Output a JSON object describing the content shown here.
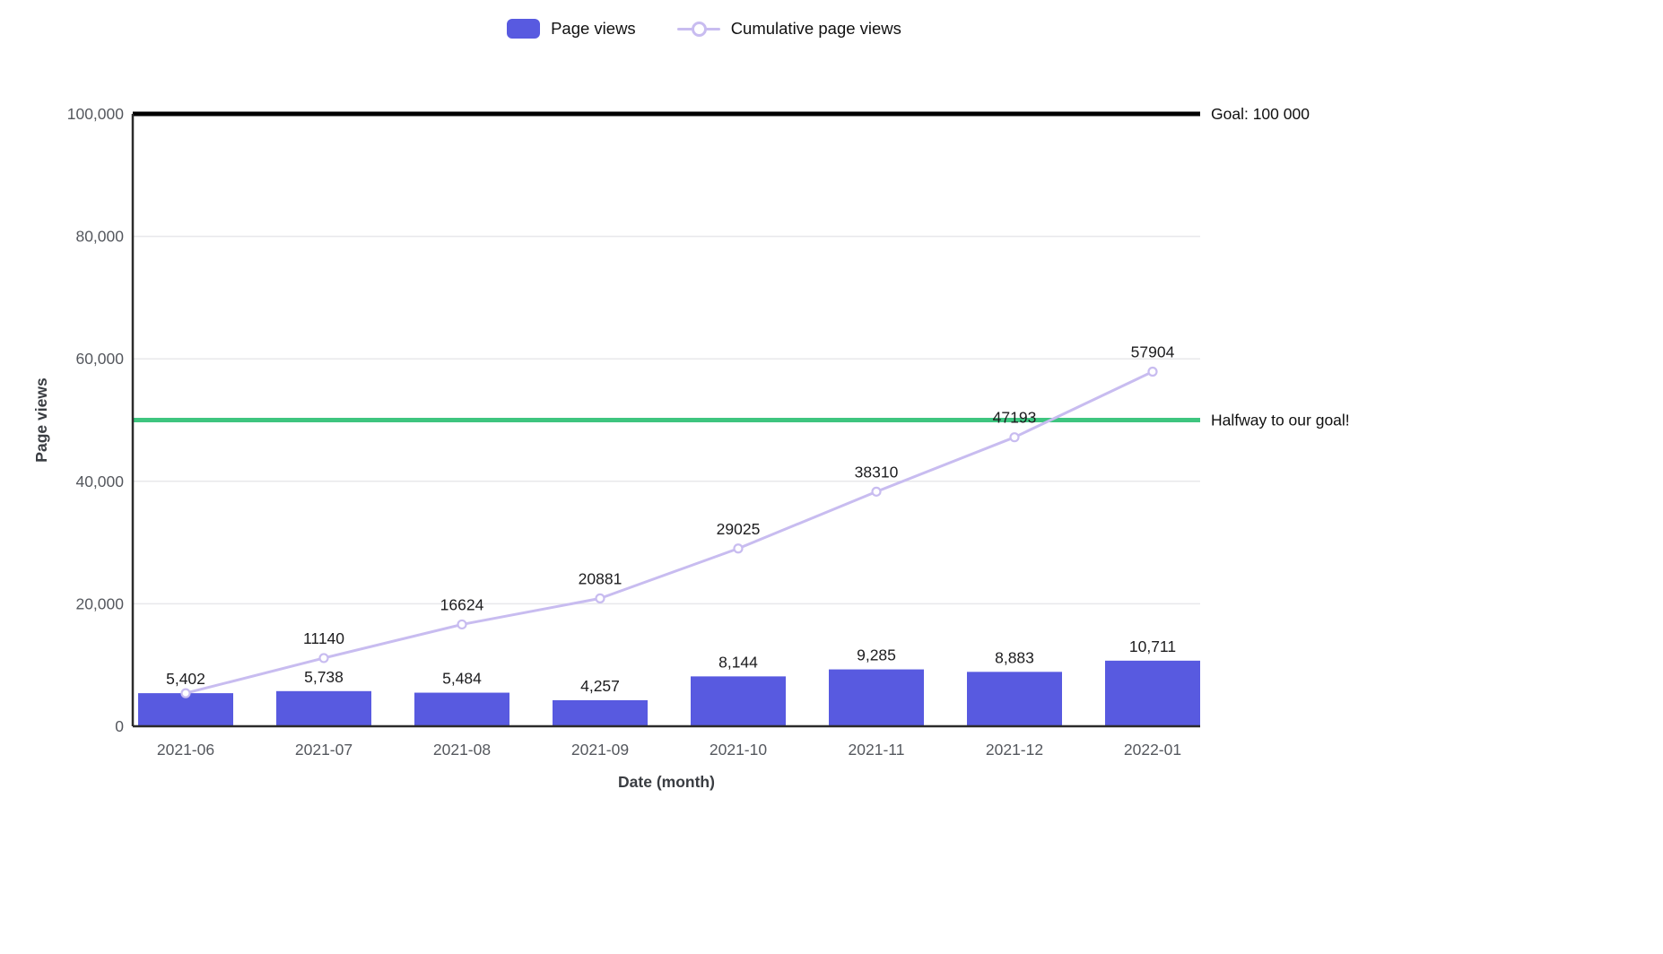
{
  "legend": {
    "items": [
      {
        "label": "Page views",
        "swatch": "bar"
      },
      {
        "label": "Cumulative page views",
        "swatch": "line-marker"
      }
    ]
  },
  "chart_data": {
    "type": "bar+line",
    "title": "",
    "xlabel": "Date (month)",
    "ylabel": "Page views",
    "categories": [
      "2021-06",
      "2021-07",
      "2021-08",
      "2021-09",
      "2021-10",
      "2021-11",
      "2021-12",
      "2022-01"
    ],
    "series": [
      {
        "name": "Page views",
        "type": "bar",
        "color": "#585ae0",
        "values": [
          5402,
          5738,
          5484,
          4257,
          8144,
          9285,
          8883,
          10711
        ],
        "labels": [
          "5,402",
          "5,738",
          "5,484",
          "4,257",
          "8,144",
          "9,285",
          "8,883",
          "10,711"
        ]
      },
      {
        "name": "Cumulative page views",
        "type": "line",
        "color": "#c8bcf0",
        "marker": "open-circle",
        "values": [
          5402,
          11140,
          16624,
          20881,
          29025,
          38310,
          47193,
          57904
        ],
        "labels": [
          "",
          "11140",
          "16624",
          "20881",
          "29025",
          "38310",
          "47193",
          "57904"
        ]
      }
    ],
    "ylim": [
      0,
      100000
    ],
    "yticks": [
      0,
      20000,
      40000,
      60000,
      80000,
      100000
    ],
    "ytick_labels": [
      "0",
      "20,000",
      "40,000",
      "60,000",
      "80,000",
      "100,000"
    ],
    "grid": true,
    "legend_position": "top-center",
    "reference_lines": [
      {
        "value": 100000,
        "color": "#000000",
        "width": 5,
        "label": "Goal: 100 000"
      },
      {
        "value": 50000,
        "color": "#3ec57f",
        "width": 5,
        "label": "Halfway to our goal!"
      }
    ],
    "colors": {
      "axis": "#2b2b2b",
      "grid": "#e8e8eb",
      "tick_text": "#55585e",
      "value_text": "#1d1d1f",
      "ref_text": "#101010"
    }
  }
}
